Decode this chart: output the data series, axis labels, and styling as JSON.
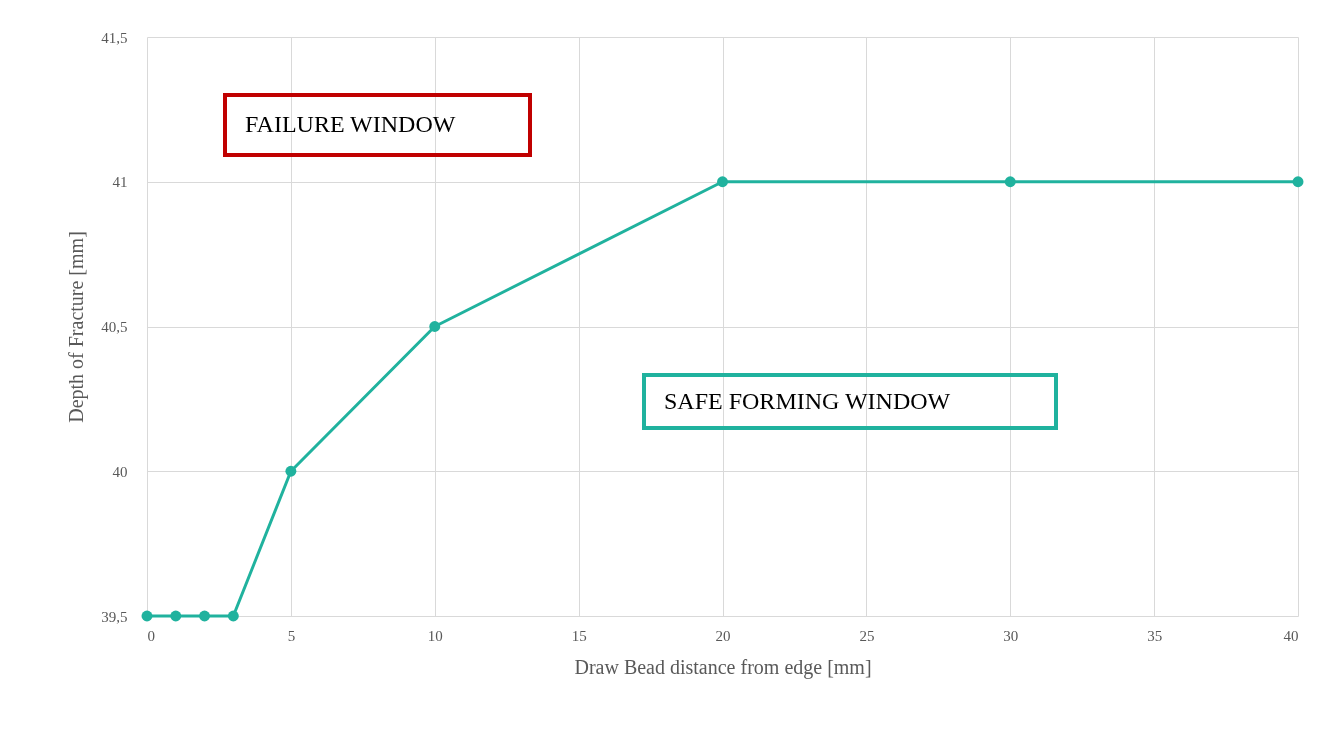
{
  "chart_data": {
    "type": "line",
    "xlabel": "Draw Bead distance from edge [mm]",
    "ylabel": "Depth of Fracture [mm]",
    "x": [
      0,
      1,
      2,
      3,
      5,
      10,
      20,
      30,
      40
    ],
    "series": [
      {
        "color": "#20b29e",
        "values": [
          39.5,
          39.5,
          39.5,
          39.5,
          40,
          40.5,
          41,
          41,
          41
        ]
      }
    ],
    "xlim": [
      0,
      40
    ],
    "xticks": [
      0,
      5,
      10,
      15,
      20,
      25,
      30,
      35,
      40
    ],
    "ylim": [
      39.5,
      41.5
    ],
    "yticks": [
      {
        "value": 39.5,
        "label": "39,5"
      },
      40,
      {
        "value": 40.5,
        "label": "40,5"
      },
      41,
      {
        "value": 41.5,
        "label": "41,5"
      }
    ],
    "grid": true,
    "marker": "circle",
    "line_style": "solid",
    "annotations": [
      "FAILURE WINDOW",
      "SAFE FORMING WINDOW"
    ]
  }
}
